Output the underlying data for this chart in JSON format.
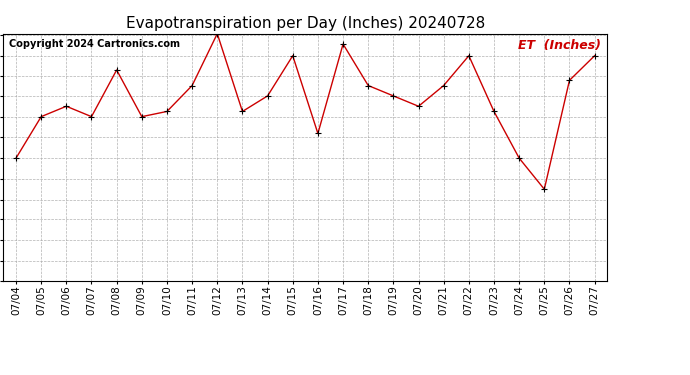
{
  "title": "Evapotranspiration per Day (Inches) 20240728",
  "copyright": "Copyright 2024 Cartronics.com",
  "legend_label": "ET  (Inches)",
  "dates": [
    "07/04",
    "07/05",
    "07/06",
    "07/07",
    "07/08",
    "07/09",
    "07/10",
    "07/11",
    "07/12",
    "07/13",
    "07/14",
    "07/15",
    "07/16",
    "07/17",
    "07/18",
    "07/19",
    "07/20",
    "07/21",
    "07/22",
    "07/23",
    "07/24",
    "07/25",
    "07/26",
    "07/27"
  ],
  "values": [
    0.095,
    0.127,
    0.135,
    0.127,
    0.163,
    0.127,
    0.131,
    0.151,
    0.191,
    0.131,
    0.143,
    0.174,
    0.114,
    0.183,
    0.151,
    0.143,
    0.135,
    0.151,
    0.174,
    0.131,
    0.095,
    0.071,
    0.155,
    0.174
  ],
  "ylim": [
    0.0,
    0.19
  ],
  "yticks": [
    0.0,
    0.016,
    0.032,
    0.048,
    0.063,
    0.079,
    0.095,
    0.111,
    0.127,
    0.143,
    0.158,
    0.174,
    0.19
  ],
  "line_color": "#cc0000",
  "marker_color": "#000000",
  "bg_color": "#ffffff",
  "grid_color": "#aaaaaa",
  "title_fontsize": 11,
  "legend_color": "#cc0000",
  "copyright_color": "#000000",
  "copyright_fontsize": 7,
  "legend_fontsize": 9,
  "tick_fontsize": 7.5,
  "ytick_fontsize": 7.5
}
